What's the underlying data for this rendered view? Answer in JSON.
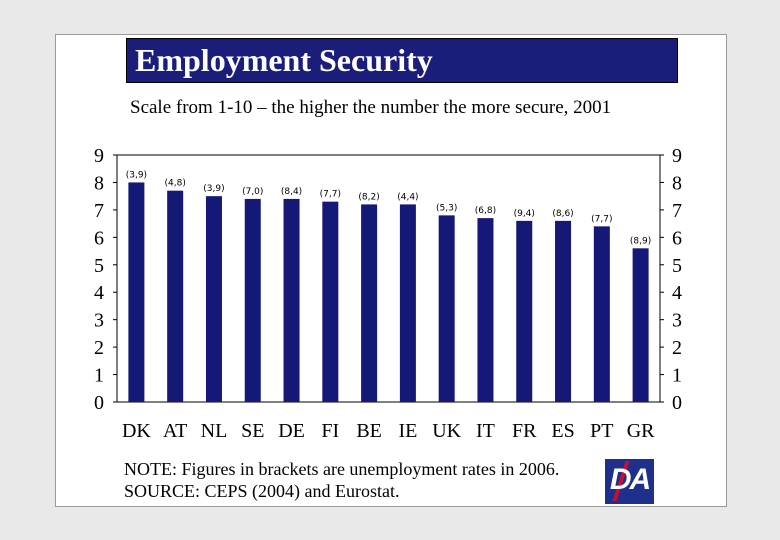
{
  "title": "Employment Security",
  "subtitle": "Scale from 1-10 – the higher the number the more secure, 2001",
  "note_line1": "NOTE: Figures in brackets are unemployment rates in 2006.",
  "note_line2": "SOURCE: CEPS (2004) and Eurostat.",
  "logo_text": "DA",
  "colors": {
    "bar": "#141876",
    "title_bg": "#1a1e7a",
    "logo_bg": "#1e2f8c",
    "logo_accent": "#c8102e"
  },
  "chart_data": {
    "type": "bar",
    "title": "Employment Security",
    "ylim": [
      0,
      9
    ],
    "yticks": [
      0,
      1,
      2,
      3,
      4,
      5,
      6,
      7,
      8,
      9
    ],
    "grid": false,
    "categories": [
      "DK",
      "AT",
      "NL",
      "SE",
      "DE",
      "FI",
      "BE",
      "IE",
      "UK",
      "IT",
      "FR",
      "ES",
      "PT",
      "GR"
    ],
    "values": [
      8.0,
      7.7,
      7.5,
      7.4,
      7.4,
      7.3,
      7.2,
      7.2,
      6.8,
      6.7,
      6.6,
      6.6,
      6.4,
      5.6
    ],
    "bar_labels": [
      "(3,9)",
      "(4,8)",
      "(3,9)",
      "(7,0)",
      "(8,4)",
      "(7,7)",
      "(8,2)",
      "(4,4)",
      "(5,3)",
      "(6,8)",
      "(9,4)",
      "(8,6)",
      "(7,7)",
      "(8,9)"
    ]
  }
}
